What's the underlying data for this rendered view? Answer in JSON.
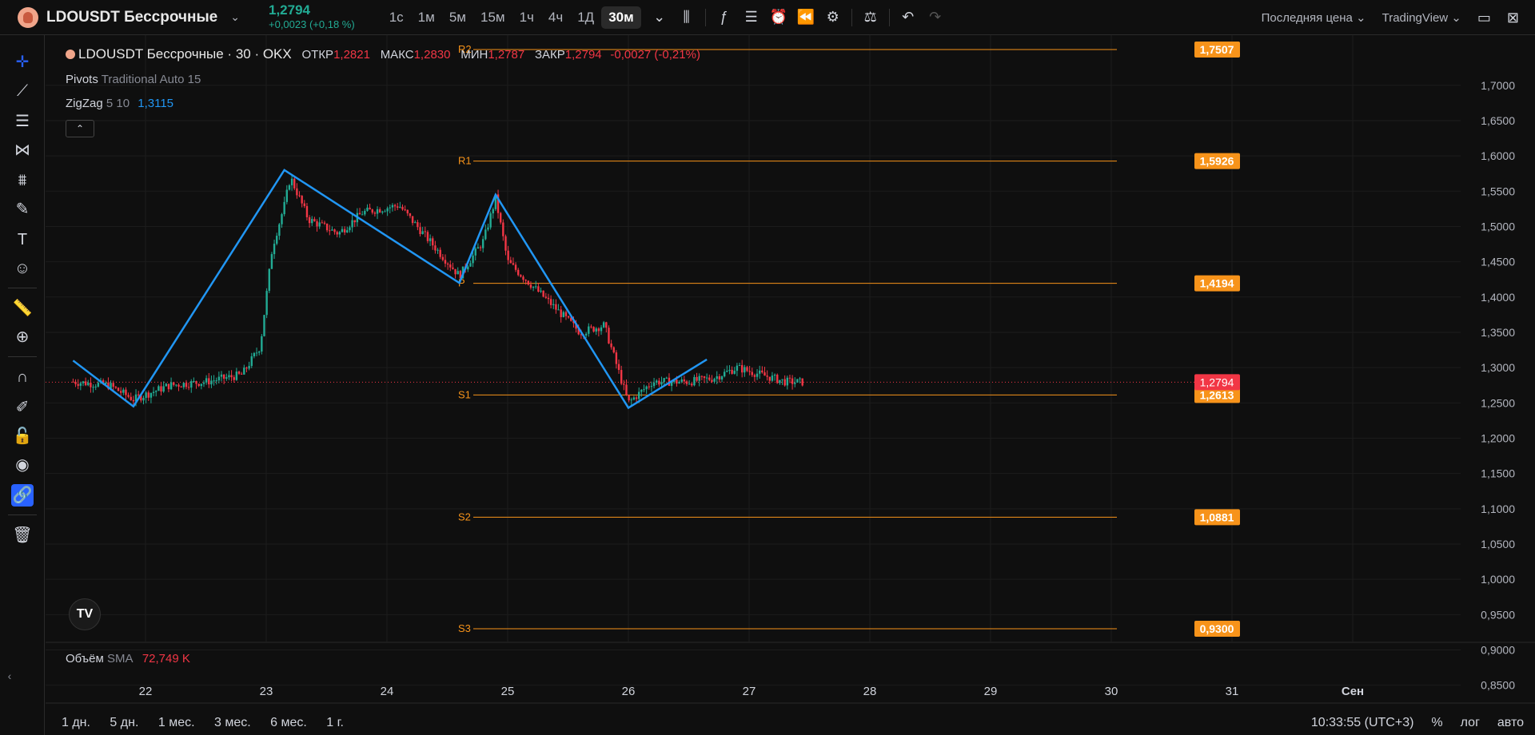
{
  "header": {
    "symbol": "LDOUSDT Бессрочные",
    "price": "1,2794",
    "change": "+0,0023 (+0,18 %)",
    "intervals": [
      "1с",
      "1м",
      "5м",
      "15м",
      "1ч",
      "4ч",
      "1Д",
      "30м"
    ],
    "active_interval": "30м",
    "price_type": "Последняя цена",
    "brand": "TradingView"
  },
  "legend": {
    "title": "LDOUSDT Бессрочные · 30 · OKX",
    "open_label": "ОТКР",
    "open": "1,2821",
    "high_label": "МАКС",
    "high": "1,2830",
    "low_label": "МИН",
    "low": "1,2787",
    "close_label": "ЗАКР",
    "close": "1,2794",
    "change": "-0,0027 (-0,21%)"
  },
  "indicators": {
    "pivots_name": "Pivots",
    "pivots_params": "Traditional Auto 15",
    "zigzag_name": "ZigZag",
    "zigzag_params": "5 10",
    "zigzag_value": "1,3115",
    "volume_name": "Объём",
    "volume_ma": "SMA",
    "volume_value": "72,749 K"
  },
  "bottom": {
    "ranges": [
      "1 дн.",
      "5 дн.",
      "1 мес.",
      "3 мес.",
      "6 мес.",
      "1 г."
    ],
    "time": "10:33:55 (UTC+3)",
    "percent": "%",
    "log": "лог",
    "auto": "авто"
  },
  "chart_data": {
    "type": "candlestick",
    "y_ticks": [
      "1,7000",
      "1,6500",
      "1,6000",
      "1,5500",
      "1,5000",
      "1,4500",
      "1,4000",
      "1,3500",
      "1,3000",
      "1,2500",
      "1,2000",
      "1,1500",
      "1,1000",
      "1,0500",
      "1,0000",
      "0,9500",
      "0,9000",
      "0,8500"
    ],
    "ylim": [
      0.835,
      1.77
    ],
    "x_ticks": [
      "22",
      "23",
      "24",
      "25",
      "26",
      "27",
      "28",
      "29",
      "30",
      "31",
      "Сен"
    ],
    "pivots": [
      {
        "name": "R2",
        "value": 1.7507,
        "label": "1,7507"
      },
      {
        "name": "R1",
        "value": 1.5926,
        "label": "1,5926"
      },
      {
        "name": "P",
        "value": 1.4194,
        "label": "1,4194"
      },
      {
        "name": "S1",
        "value": 1.2613,
        "label": "1,2613"
      },
      {
        "name": "S2",
        "value": 1.0881,
        "label": "1,0881"
      },
      {
        "name": "S3",
        "value": 0.93,
        "label": "0,9300"
      }
    ],
    "last_price": {
      "value": 1.2794,
      "label": "1,2794"
    },
    "zigzag": [
      {
        "x": 21.4,
        "y": 1.31
      },
      {
        "x": 21.9,
        "y": 1.245
      },
      {
        "x": 23.15,
        "y": 1.58
      },
      {
        "x": 24.6,
        "y": 1.42
      },
      {
        "x": 24.9,
        "y": 1.545
      },
      {
        "x": 26.0,
        "y": 1.243
      },
      {
        "x": 26.65,
        "y": 1.3115
      }
    ],
    "price_path": [
      [
        21.4,
        1.28
      ],
      [
        21.7,
        1.275
      ],
      [
        21.9,
        1.255
      ],
      [
        22.2,
        1.275
      ],
      [
        22.5,
        1.28
      ],
      [
        22.8,
        1.29
      ],
      [
        22.95,
        1.33
      ],
      [
        23.05,
        1.47
      ],
      [
        23.15,
        1.53
      ],
      [
        23.2,
        1.57
      ],
      [
        23.35,
        1.51
      ],
      [
        23.6,
        1.49
      ],
      [
        23.8,
        1.52
      ],
      [
        24.1,
        1.53
      ],
      [
        24.3,
        1.49
      ],
      [
        24.6,
        1.43
      ],
      [
        24.8,
        1.48
      ],
      [
        24.9,
        1.54
      ],
      [
        25.0,
        1.45
      ],
      [
        25.3,
        1.4
      ],
      [
        25.6,
        1.35
      ],
      [
        25.8,
        1.36
      ],
      [
        26.0,
        1.25
      ],
      [
        26.2,
        1.28
      ],
      [
        26.5,
        1.28
      ],
      [
        26.7,
        1.285
      ],
      [
        26.9,
        1.3
      ],
      [
        27.1,
        1.29
      ],
      [
        27.3,
        1.28
      ],
      [
        27.45,
        1.2794
      ]
    ]
  }
}
